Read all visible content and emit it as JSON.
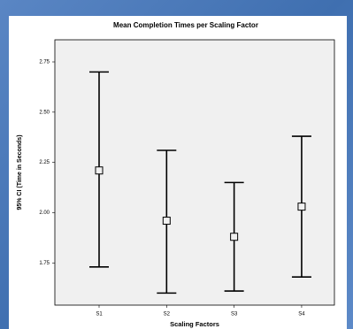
{
  "chart_data": {
    "type": "errorbar",
    "title": "Mean Completion Times per Scaling Factor",
    "xlabel": "Scaling Factors",
    "ylabel": "95% CI (Time in Seconds)",
    "categories": [
      "S1",
      "S2",
      "S3",
      "S4"
    ],
    "values": [
      2.21,
      1.96,
      1.88,
      2.03
    ],
    "lower": [
      1.73,
      1.6,
      1.61,
      1.68
    ],
    "upper": [
      2.7,
      2.31,
      2.15,
      2.38
    ],
    "ylim": [
      1.54,
      2.86
    ],
    "yticks": [
      1.75,
      {
        "value": 2,
        "label": "2.00"
      },
      2.25,
      {
        "value": 2.5,
        "label": "2.50"
      },
      2.75
    ],
    "color": "#000000"
  }
}
